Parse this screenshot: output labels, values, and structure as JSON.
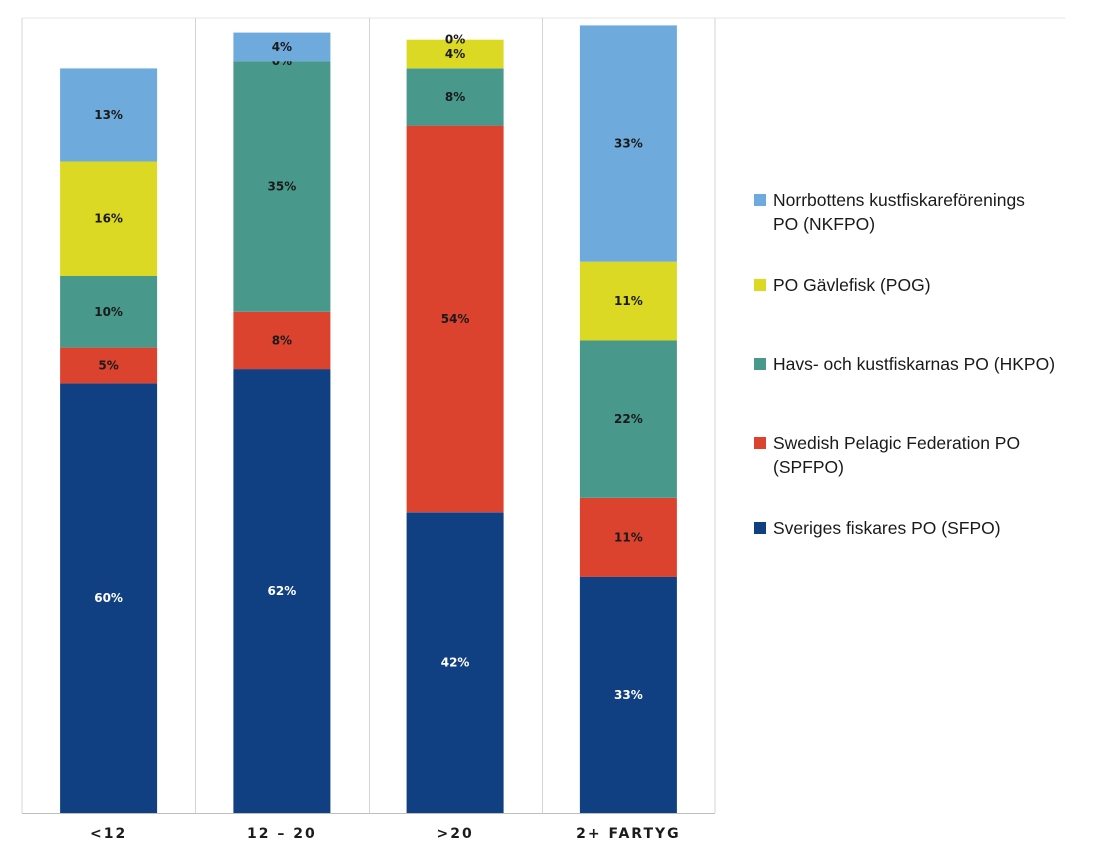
{
  "chart_data": {
    "type": "bar",
    "stacked": true,
    "normalized": false,
    "categories": [
      "<12",
      "12  –  20",
      ">20",
      "2+ FARTYG"
    ],
    "series": [
      {
        "name": "Sveriges fiskares PO (SFPO)",
        "color": "#103f82",
        "label_color": "#ffffff",
        "values": [
          60,
          62,
          42,
          33
        ],
        "labels": [
          "60%",
          "62%",
          "42%",
          "33%"
        ]
      },
      {
        "name": "Swedish Pelagic Federation PO (SPFPO)",
        "color": "#dc432f",
        "label_color": "#1a1a1a",
        "values": [
          5,
          8,
          54,
          11
        ],
        "labels": [
          "5%",
          "8%",
          "54%",
          "11%"
        ]
      },
      {
        "name": "Havs- och kustfiskarnas PO (HKPO)",
        "color": "#48998b",
        "label_color": "#1a1a1a",
        "values": [
          10,
          35,
          8,
          22
        ],
        "labels": [
          "10%",
          "35%",
          "8%",
          "22%"
        ]
      },
      {
        "name": "PO Gävlefisk (POG)",
        "color": "#dbd924",
        "label_color": "#1a1a1a",
        "values": [
          16,
          0,
          4,
          11
        ],
        "labels": [
          "16%",
          "0%",
          "4%",
          "11%"
        ]
      },
      {
        "name": "Norrbottens kustfiskareförenings PO (NKFPO)",
        "color": "#6eaadb",
        "label_color": "#1a1a1a",
        "values": [
          13,
          4,
          0,
          33
        ],
        "labels": [
          "13%",
          "4%",
          "0%",
          "33%"
        ]
      }
    ],
    "legend_order": [
      4,
      3,
      2,
      1,
      0
    ],
    "legend_lines": [
      [
        "Norrbottens kustfiskareförenings",
        "PO (NKFPO)"
      ],
      [
        "PO Gävlefisk (POG)"
      ],
      [
        "Havs- och kustfiskarnas PO (HKPO)"
      ],
      [
        "Swedish Pelagic Federation PO",
        "(SPFPO)"
      ],
      [
        "Sveriges fiskares PO (SFPO)"
      ]
    ],
    "legend_position": "right",
    "grid": false,
    "xlabel": "",
    "ylabel": ""
  }
}
